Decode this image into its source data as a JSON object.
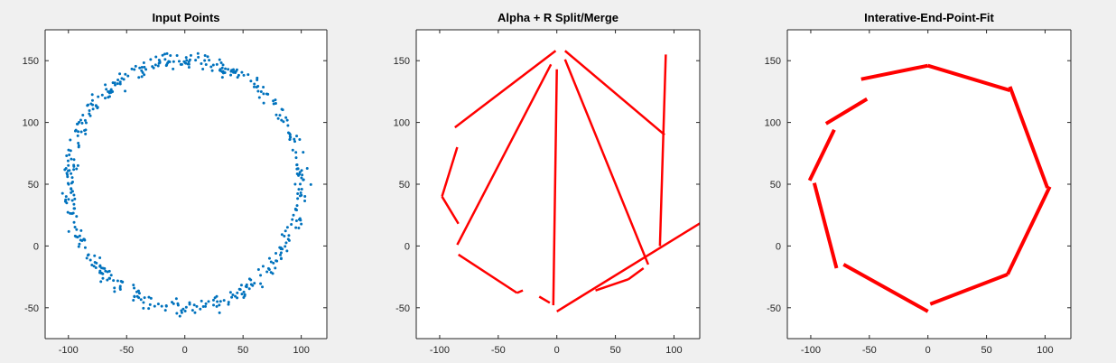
{
  "chart_data": [
    {
      "type": "scatter",
      "title": "Input Points",
      "xlabel": "",
      "ylabel": "",
      "xlim": [
        -120,
        122
      ],
      "ylim": [
        -75,
        175
      ],
      "xticks": [
        -100,
        -50,
        0,
        50,
        100
      ],
      "yticks": [
        -50,
        0,
        50,
        100,
        150
      ],
      "xtick_labels": [
        "-100",
        "-50",
        "0",
        "50",
        "100"
      ],
      "ytick_labels": [
        "-50",
        "0",
        "50",
        "100",
        "150"
      ],
      "grid": false,
      "marker_color": "#0072bd",
      "ring": {
        "center_x": 0,
        "center_y": 50,
        "radius": 100,
        "y_scale": 1.0,
        "noise": 4,
        "count": 460,
        "description_hint": "points scattered around a circle of radius ~100 centred at (0, 50)"
      }
    },
    {
      "type": "line",
      "title": "Alpha + R Split/Merge",
      "xlabel": "",
      "ylabel": "",
      "xlim": [
        -120,
        122
      ],
      "ylim": [
        -75,
        175
      ],
      "xticks": [
        -100,
        -50,
        0,
        50,
        100
      ],
      "yticks": [
        -50,
        0,
        50,
        100,
        150
      ],
      "xtick_labels": [
        "-100",
        "-50",
        "0",
        "50",
        "100"
      ],
      "ytick_labels": [
        "-50",
        "0",
        "50",
        "100",
        "150"
      ],
      "grid": false,
      "line_color": "#ff0000",
      "segments": [
        [
          [
            -87,
            96
          ],
          [
            -1,
            158
          ]
        ],
        [
          [
            7,
            158
          ],
          [
            92,
            90
          ]
        ],
        [
          [
            93,
            155
          ],
          [
            88,
            0
          ]
        ],
        [
          [
            -85,
            80
          ],
          [
            -98,
            40
          ]
        ],
        [
          [
            -98,
            40
          ],
          [
            -84,
            18
          ]
        ],
        [
          [
            -85,
            1
          ],
          [
            -5,
            147
          ]
        ],
        [
          [
            0,
            143
          ],
          [
            -3,
            -48
          ]
        ],
        [
          [
            7,
            151
          ],
          [
            78,
            -15
          ]
        ],
        [
          [
            -84,
            -7
          ],
          [
            -34,
            -38
          ]
        ],
        [
          [
            -34,
            -38
          ],
          [
            -29,
            -36
          ]
        ],
        [
          [
            -15,
            -41
          ],
          [
            -6,
            -46
          ]
        ],
        [
          [
            0,
            -53
          ],
          [
            125,
            20
          ]
        ],
        [
          [
            33,
            -36
          ],
          [
            61,
            -27
          ]
        ],
        [
          [
            61,
            -27
          ],
          [
            74,
            -18
          ]
        ]
      ]
    },
    {
      "type": "line",
      "title": "Interative-End-Point-Fit",
      "xlabel": "",
      "ylabel": "",
      "xlim": [
        -120,
        122
      ],
      "ylim": [
        -75,
        175
      ],
      "xticks": [
        -100,
        -50,
        0,
        50,
        100
      ],
      "yticks": [
        -50,
        0,
        50,
        100,
        150
      ],
      "xtick_labels": [
        "-100",
        "-50",
        "0",
        "50",
        "100"
      ],
      "ytick_labels": [
        "-50",
        "0",
        "50",
        "100",
        "150"
      ],
      "grid": false,
      "line_color": "#ff0000",
      "segments": [
        [
          [
            -57,
            135
          ],
          [
            0,
            146
          ]
        ],
        [
          [
            0,
            146
          ],
          [
            70,
            126
          ]
        ],
        [
          [
            70,
            129
          ],
          [
            102,
            47
          ]
        ],
        [
          [
            104,
            48
          ],
          [
            68,
            -23
          ]
        ],
        [
          [
            68,
            -23
          ],
          [
            2,
            -47
          ]
        ],
        [
          [
            0,
            -53
          ],
          [
            -72,
            -15
          ]
        ],
        [
          [
            -78,
            -18
          ],
          [
            -97,
            51
          ]
        ],
        [
          [
            -101,
            53
          ],
          [
            -80,
            94
          ]
        ],
        [
          [
            -87,
            99
          ],
          [
            -52,
            119
          ]
        ]
      ]
    }
  ]
}
